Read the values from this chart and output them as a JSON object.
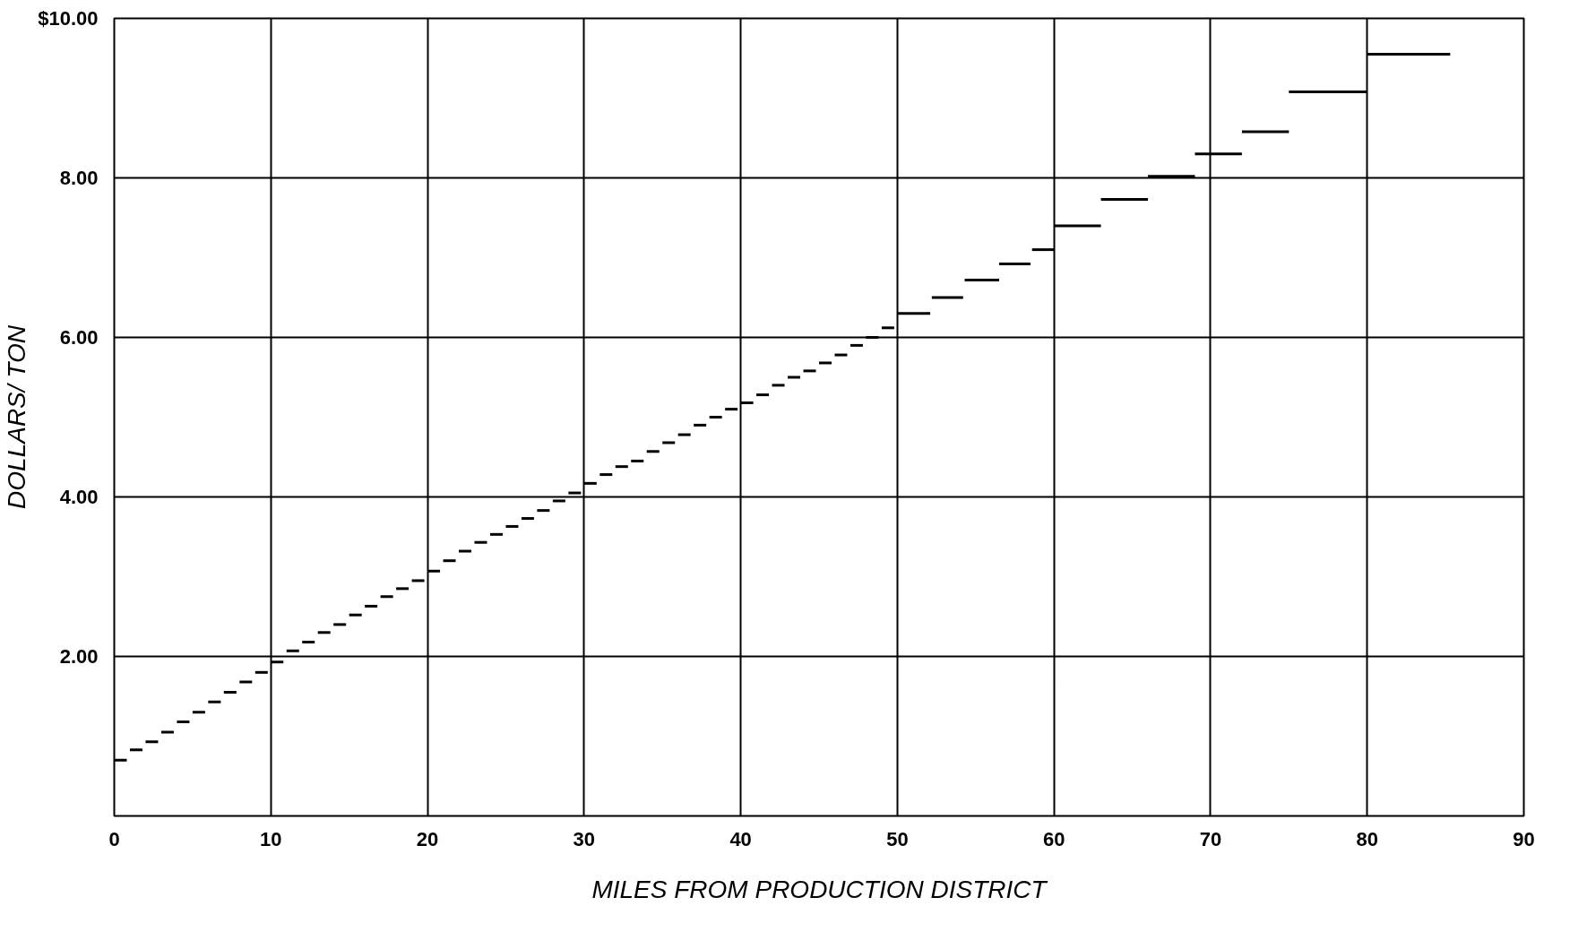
{
  "chart_data": {
    "type": "line",
    "xlabel": "MILES FROM PRODUCTION DISTRICT",
    "ylabel": "DOLLARS/ TON",
    "xlim": [
      0,
      90
    ],
    "xticks": [
      0,
      10,
      20,
      30,
      40,
      50,
      60,
      70,
      80,
      90
    ],
    "ylim": [
      0,
      10
    ],
    "yticks": [
      {
        "value": 2,
        "label": "2.00"
      },
      {
        "value": 4,
        "label": "4.00"
      },
      {
        "value": 6,
        "label": "6.00"
      },
      {
        "value": 8,
        "label": "8.00"
      },
      {
        "value": 10,
        "label": "$10.00"
      }
    ],
    "grid": true,
    "marker": "none",
    "line_style": "solid",
    "color": "#000000",
    "series": [
      {
        "x": [
          0,
          0.8
        ],
        "values": [
          0.7,
          0.7
        ]
      },
      {
        "x": [
          1,
          1.8
        ],
        "values": [
          0.83,
          0.83
        ]
      },
      {
        "x": [
          2,
          2.8
        ],
        "values": [
          0.93,
          0.93
        ]
      },
      {
        "x": [
          3,
          3.8
        ],
        "values": [
          1.05,
          1.05
        ]
      },
      {
        "x": [
          4,
          4.8
        ],
        "values": [
          1.18,
          1.18
        ]
      },
      {
        "x": [
          5,
          5.8
        ],
        "values": [
          1.3,
          1.3
        ]
      },
      {
        "x": [
          6,
          6.8
        ],
        "values": [
          1.43,
          1.43
        ]
      },
      {
        "x": [
          7,
          7.8
        ],
        "values": [
          1.55,
          1.55
        ]
      },
      {
        "x": [
          8,
          8.8
        ],
        "values": [
          1.68,
          1.68
        ]
      },
      {
        "x": [
          9,
          9.8
        ],
        "values": [
          1.8,
          1.8
        ]
      },
      {
        "x": [
          10,
          10.8
        ],
        "values": [
          1.93,
          1.93
        ]
      },
      {
        "x": [
          11,
          11.8
        ],
        "values": [
          2.07,
          2.07
        ]
      },
      {
        "x": [
          12,
          12.8
        ],
        "values": [
          2.18,
          2.18
        ]
      },
      {
        "x": [
          13,
          13.8
        ],
        "values": [
          2.3,
          2.3
        ]
      },
      {
        "x": [
          14,
          14.8
        ],
        "values": [
          2.4,
          2.4
        ]
      },
      {
        "x": [
          15,
          15.8
        ],
        "values": [
          2.52,
          2.52
        ]
      },
      {
        "x": [
          16,
          16.8
        ],
        "values": [
          2.63,
          2.63
        ]
      },
      {
        "x": [
          17,
          17.8
        ],
        "values": [
          2.75,
          2.75
        ]
      },
      {
        "x": [
          18,
          18.8
        ],
        "values": [
          2.85,
          2.85
        ]
      },
      {
        "x": [
          19,
          19.8
        ],
        "values": [
          2.95,
          2.95
        ]
      },
      {
        "x": [
          20,
          20.8
        ],
        "values": [
          3.07,
          3.07
        ]
      },
      {
        "x": [
          21,
          21.8
        ],
        "values": [
          3.2,
          3.2
        ]
      },
      {
        "x": [
          22,
          22.8
        ],
        "values": [
          3.32,
          3.32
        ]
      },
      {
        "x": [
          23,
          23.8
        ],
        "values": [
          3.43,
          3.43
        ]
      },
      {
        "x": [
          24,
          24.8
        ],
        "values": [
          3.53,
          3.53
        ]
      },
      {
        "x": [
          25,
          25.8
        ],
        "values": [
          3.63,
          3.63
        ]
      },
      {
        "x": [
          26,
          26.8
        ],
        "values": [
          3.73,
          3.73
        ]
      },
      {
        "x": [
          27,
          27.8
        ],
        "values": [
          3.83,
          3.83
        ]
      },
      {
        "x": [
          28,
          28.8
        ],
        "values": [
          3.95,
          3.95
        ]
      },
      {
        "x": [
          29,
          29.8
        ],
        "values": [
          4.05,
          4.05
        ]
      },
      {
        "x": [
          30,
          30.8
        ],
        "values": [
          4.17,
          4.17
        ]
      },
      {
        "x": [
          31,
          31.8
        ],
        "values": [
          4.28,
          4.28
        ]
      },
      {
        "x": [
          32,
          32.8
        ],
        "values": [
          4.38,
          4.38
        ]
      },
      {
        "x": [
          33,
          33.8
        ],
        "values": [
          4.45,
          4.45
        ]
      },
      {
        "x": [
          34,
          34.8
        ],
        "values": [
          4.57,
          4.57
        ]
      },
      {
        "x": [
          35,
          35.8
        ],
        "values": [
          4.68,
          4.68
        ]
      },
      {
        "x": [
          36,
          36.8
        ],
        "values": [
          4.78,
          4.78
        ]
      },
      {
        "x": [
          37,
          37.8
        ],
        "values": [
          4.9,
          4.9
        ]
      },
      {
        "x": [
          38,
          38.8
        ],
        "values": [
          5.0,
          5.0
        ]
      },
      {
        "x": [
          39,
          39.8
        ],
        "values": [
          5.1,
          5.1
        ]
      },
      {
        "x": [
          40,
          40.8
        ],
        "values": [
          5.18,
          5.18
        ]
      },
      {
        "x": [
          41,
          41.8
        ],
        "values": [
          5.28,
          5.28
        ]
      },
      {
        "x": [
          42,
          42.8
        ],
        "values": [
          5.4,
          5.4
        ]
      },
      {
        "x": [
          43,
          43.8
        ],
        "values": [
          5.5,
          5.5
        ]
      },
      {
        "x": [
          44,
          44.8
        ],
        "values": [
          5.58,
          5.58
        ]
      },
      {
        "x": [
          45,
          45.8
        ],
        "values": [
          5.68,
          5.68
        ]
      },
      {
        "x": [
          46,
          46.8
        ],
        "values": [
          5.78,
          5.78
        ]
      },
      {
        "x": [
          47,
          47.8
        ],
        "values": [
          5.9,
          5.9
        ]
      },
      {
        "x": [
          48,
          48.8
        ],
        "values": [
          6.0,
          6.0
        ]
      },
      {
        "x": [
          49,
          49.8
        ],
        "values": [
          6.12,
          6.12
        ]
      },
      {
        "x": [
          50,
          52.1
        ],
        "values": [
          6.3,
          6.3
        ]
      },
      {
        "x": [
          52.2,
          54.2
        ],
        "values": [
          6.5,
          6.5
        ]
      },
      {
        "x": [
          54.3,
          56.5
        ],
        "values": [
          6.72,
          6.72
        ]
      },
      {
        "x": [
          56.5,
          58.5
        ],
        "values": [
          6.92,
          6.92
        ]
      },
      {
        "x": [
          58.6,
          60
        ],
        "values": [
          7.1,
          7.1
        ]
      },
      {
        "x": [
          60,
          63
        ],
        "values": [
          7.4,
          7.4
        ]
      },
      {
        "x": [
          63,
          66
        ],
        "values": [
          7.73,
          7.73
        ]
      },
      {
        "x": [
          66,
          69
        ],
        "values": [
          8.02,
          8.02
        ]
      },
      {
        "x": [
          69,
          72
        ],
        "values": [
          8.3,
          8.3
        ]
      },
      {
        "x": [
          72,
          75
        ],
        "values": [
          8.58,
          8.58
        ]
      },
      {
        "x": [
          75,
          80
        ],
        "values": [
          9.08,
          9.08
        ]
      },
      {
        "x": [
          80,
          85.3
        ],
        "values": [
          9.55,
          9.55
        ]
      }
    ]
  }
}
